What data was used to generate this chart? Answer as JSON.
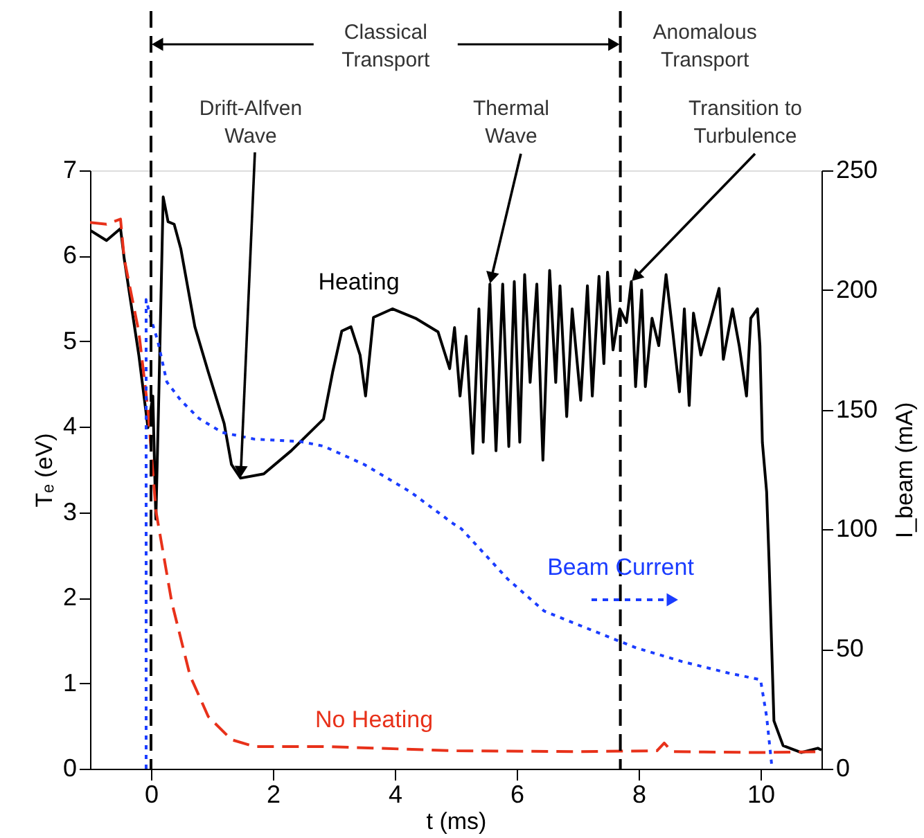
{
  "chart_data": {
    "type": "line",
    "xlabel": "t (ms)",
    "ylabel": "Tₑ (eV)",
    "y2label": "I_beam (mA)",
    "xlim": [
      -1,
      11
    ],
    "xticks": [
      0,
      2,
      4,
      6,
      8,
      10
    ],
    "ylim": [
      0,
      7
    ],
    "yticks": [
      0,
      1,
      2,
      3,
      4,
      5,
      6,
      7
    ],
    "y2lim": [
      0,
      250
    ],
    "y2ticks": [
      0,
      50,
      100,
      150,
      200,
      250
    ],
    "grid": false,
    "series": [
      {
        "name": "Heating",
        "color": "#000000",
        "line_style": "solid",
        "x": [
          -1,
          -0.73,
          -0.5,
          -0.44,
          -0.2,
          -0.05,
          0.03,
          0.08,
          0.13,
          0.2,
          0.28,
          0.38,
          0.49,
          0.72,
          0.94,
          1.2,
          1.32,
          1.47,
          1.85,
          2.3,
          2.83,
          2.98,
          3.13,
          3.28,
          3.43,
          3.52,
          3.65,
          3.96,
          4.34,
          4.71,
          4.9,
          4.98,
          5.07,
          5.17,
          5.28,
          5.38,
          5.45,
          5.56,
          5.66,
          5.77,
          5.87,
          5.96,
          6.05,
          6.13,
          6.22,
          6.33,
          6.43,
          6.54,
          6.64,
          6.71,
          6.82,
          6.91,
          7.05,
          7.16,
          7.24,
          7.35,
          7.43,
          7.49,
          7.58,
          7.69,
          7.8,
          7.88,
          7.95,
          8.05,
          8.11,
          8.22,
          8.33,
          8.45,
          8.56,
          8.67,
          8.75,
          8.83,
          8.9,
          9.02,
          9.17,
          9.32,
          9.39,
          9.54,
          9.65,
          9.77,
          9.84,
          9.95,
          9.99,
          10.03,
          10.1,
          10.14,
          10.22,
          10.37,
          10.67,
          10.94,
          11
        ],
        "values": [
          6.3,
          6.18,
          6.32,
          5.97,
          4.84,
          3.99,
          4.36,
          2.92,
          4.42,
          6.69,
          6.4,
          6.37,
          6.08,
          5.17,
          4.64,
          4.04,
          3.56,
          3.4,
          3.45,
          3.72,
          4.09,
          4.64,
          5.12,
          5.17,
          4.84,
          4.36,
          5.28,
          5.38,
          5.27,
          5.11,
          4.68,
          5.16,
          4.36,
          5.06,
          3.69,
          5.38,
          3.82,
          5.67,
          3.72,
          5.67,
          3.77,
          5.7,
          3.82,
          5.78,
          4.52,
          5.67,
          3.61,
          5.83,
          4.52,
          5.65,
          4.12,
          5.38,
          4.31,
          5.65,
          4.36,
          5.76,
          4.74,
          5.81,
          4.9,
          5.38,
          5.22,
          5.7,
          4.47,
          5.6,
          4.47,
          5.27,
          4.95,
          5.78,
          5.11,
          4.41,
          5.38,
          4.25,
          5.33,
          4.84,
          5.22,
          5.62,
          4.79,
          5.38,
          4.95,
          4.36,
          5.27,
          5.38,
          4.95,
          3.82,
          3.24,
          2.43,
          0.56,
          0.27,
          0.19,
          0.24,
          0.22
        ]
      },
      {
        "name": "No Heating",
        "color": "#e8311a",
        "line_style": "dashed",
        "x": [
          -1,
          -0.73,
          -0.5,
          -0.44,
          -0.2,
          -0.05,
          0.08,
          0.34,
          0.64,
          0.94,
          1.32,
          1.7,
          2.83,
          5.02,
          7.0,
          8.3,
          8.42,
          8.55,
          10.0,
          11
        ],
        "values": [
          6.39,
          6.37,
          6.43,
          5.97,
          5.11,
          4.2,
          3.02,
          1.95,
          1.09,
          0.61,
          0.34,
          0.26,
          0.26,
          0.21,
          0.2,
          0.21,
          0.3,
          0.2,
          0.19,
          0.2
        ]
      },
      {
        "name": "Beam Current",
        "color": "#1a3cff",
        "line_style": "dotted",
        "axis": "y2",
        "x": [
          -0.08,
          -0.08,
          0,
          0.11,
          0.26,
          0.49,
          0.79,
          1.17,
          1.7,
          2.45,
          2.83,
          3.5,
          4.26,
          4.97,
          5.09,
          5.85,
          6.45,
          7.2,
          7.96,
          8.71,
          9.47,
          10.0,
          10.1,
          10.19
        ],
        "values": [
          0,
          196,
          188,
          178.8,
          161.6,
          153.9,
          146.3,
          140.5,
          137.7,
          136.7,
          134.8,
          127.1,
          115.6,
          102.2,
          100.3,
          79.3,
          65.9,
          58.2,
          50.5,
          44.8,
          40.0,
          37.2,
          21.8,
          0
        ]
      }
    ],
    "ref_lines": [
      {
        "axis": "x",
        "value": 0,
        "line_style": "dashed",
        "color": "#000000"
      },
      {
        "axis": "x",
        "value": 7.7,
        "line_style": "dashed",
        "color": "#000000"
      }
    ],
    "annotations": [
      "Classical\nTransport",
      "Anomalous\nTransport",
      {
        "text": "Drift-Alfven\nWave",
        "x": 1.47,
        "y": 3.4
      },
      {
        "text": "Thermal\nWave",
        "x": 5.56,
        "y": 5.67
      },
      {
        "text": "Transition to\nTurbulence",
        "x": 7.88,
        "y": 5.7
      }
    ]
  }
}
